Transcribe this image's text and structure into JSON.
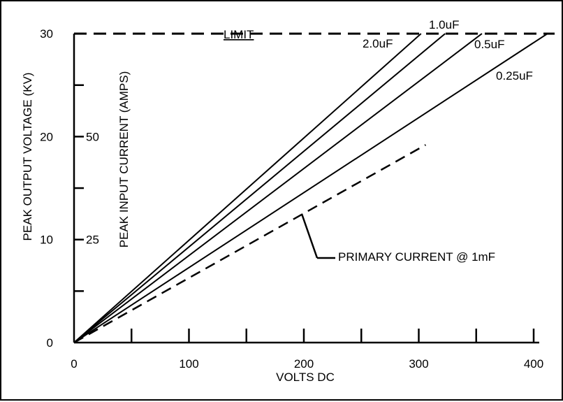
{
  "chart_data": {
    "type": "line",
    "xlabel": "VOLTS DC",
    "ylabel": "PEAK OUTPUT VOLTAGE (KV)",
    "ylabel_secondary": "PEAK INPUT CURRENT (AMPS)",
    "xlim": [
      0,
      400
    ],
    "ylim": [
      0,
      30
    ],
    "x_ticks": [
      0,
      50,
      100,
      150,
      200,
      250,
      300,
      350,
      400
    ],
    "x_tick_labels": [
      "0",
      "100",
      "200",
      "300",
      "400"
    ],
    "x_tick_label_values": [
      0,
      100,
      200,
      300,
      400
    ],
    "y_ticks": [
      0,
      5,
      10,
      15,
      20,
      25,
      30
    ],
    "y_tick_labels": [
      "0",
      "10",
      "20",
      "30"
    ],
    "y_tick_label_values": [
      0,
      10,
      20,
      30
    ],
    "y2_tick_labels": [
      "25",
      "50"
    ],
    "y2_tick_label_values": [
      10,
      20
    ],
    "grid": false,
    "limit_line": {
      "label": "LIMIT",
      "y": 30
    },
    "series": [
      {
        "name": "2.0uF",
        "style": "solid",
        "x": [
          0,
          302
        ],
        "y": [
          0,
          30
        ]
      },
      {
        "name": "1.0uF",
        "style": "solid",
        "x": [
          0,
          323
        ],
        "y": [
          0,
          30
        ]
      },
      {
        "name": "0.5uF",
        "style": "solid",
        "x": [
          0,
          355
        ],
        "y": [
          0,
          30
        ]
      },
      {
        "name": "0.25uF",
        "style": "solid",
        "x": [
          0,
          412
        ],
        "y": [
          0,
          30
        ]
      },
      {
        "name": "PRIMARY CURRENT @ 1mF",
        "style": "dashed",
        "x": [
          0,
          306
        ],
        "y": [
          0,
          19.2
        ]
      }
    ],
    "annotations": [
      {
        "text": "PRIMARY CURRENT @ 1mF",
        "points_to": {
          "x": 200,
          "y": 12.5
        }
      }
    ]
  }
}
